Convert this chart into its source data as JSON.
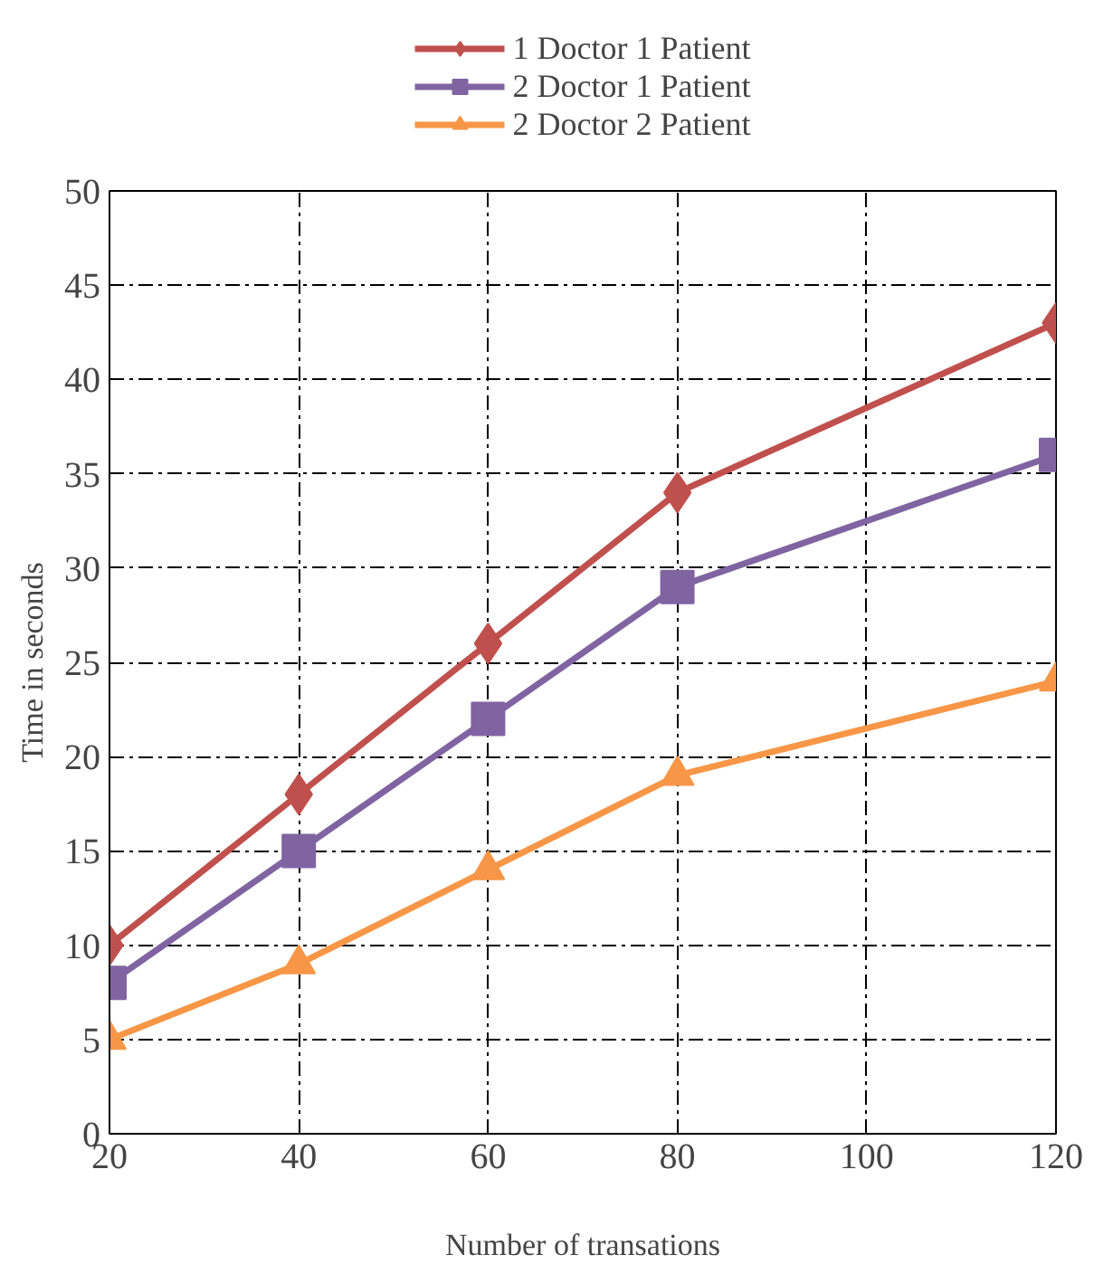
{
  "chart_data": {
    "type": "line",
    "xlabel": "Number of transations",
    "ylabel": "Time in seconds",
    "x": [
      20,
      40,
      60,
      80,
      120
    ],
    "series": [
      {
        "name": "1 Doctor 1 Patient",
        "color": "#c0504d",
        "marker": "diamond",
        "values": [
          10,
          18,
          26,
          34,
          43
        ]
      },
      {
        "name": "2 Doctor 1 Patient",
        "color": "#8064a2",
        "marker": "square",
        "values": [
          8,
          15,
          22,
          29,
          36
        ]
      },
      {
        "name": "2 Doctor 2 Patient",
        "color": "#f79646",
        "marker": "triangle",
        "values": [
          5,
          9,
          14,
          19,
          24
        ]
      }
    ],
    "xlim": [
      20,
      120
    ],
    "xticks": [
      20,
      40,
      60,
      80,
      100,
      120
    ],
    "ylim": [
      0,
      50
    ],
    "yticks": [
      0,
      5,
      10,
      15,
      20,
      25,
      30,
      35,
      40,
      45,
      50
    ],
    "grid": true,
    "legend": "top",
    "line_style": "solid"
  }
}
